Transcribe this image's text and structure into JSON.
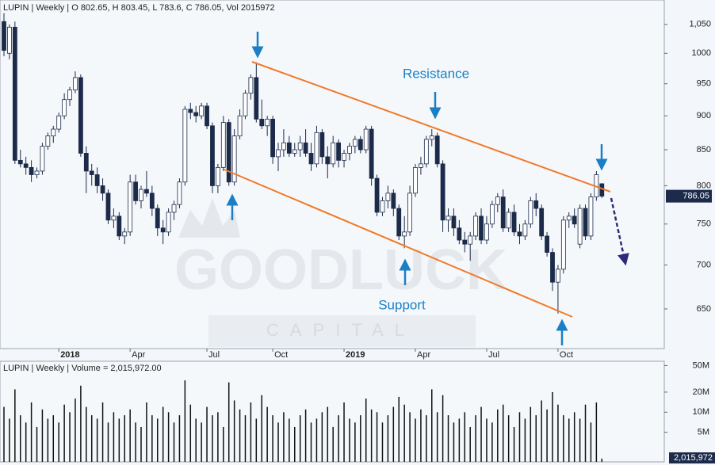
{
  "chart_data": [
    {
      "type": "candlestick",
      "title": "LUPIN | Weekly | O 802.65, H 803.45, L 783.6, C 786.05, Vol 2015972",
      "categories": [
        null,
        null,
        null,
        null,
        null,
        null,
        null,
        null,
        null,
        null,
        "2018",
        null,
        null,
        null,
        null,
        null,
        null,
        null,
        null,
        null,
        null,
        null,
        null,
        "Apr",
        null,
        null,
        null,
        null,
        null,
        null,
        null,
        null,
        null,
        null,
        null,
        null,
        null,
        "Jul",
        null,
        null,
        null,
        null,
        null,
        null,
        null,
        null,
        null,
        null,
        null,
        "Oct",
        null,
        null,
        null,
        null,
        null,
        null,
        null,
        null,
        null,
        null,
        null,
        null,
        "2019",
        null,
        null,
        null,
        null,
        null,
        null,
        null,
        null,
        null,
        null,
        null,
        null,
        "Apr",
        null,
        null,
        null,
        null,
        null,
        null,
        null,
        null,
        null,
        null,
        null,
        null,
        "Jul",
        null,
        null,
        null,
        null,
        null,
        null,
        null,
        null,
        null,
        null,
        null,
        null,
        "Oct",
        null,
        null,
        null,
        null,
        null,
        null,
        null,
        null
      ],
      "ohlc": [
        [
          1055,
          1070,
          995,
          1005
        ],
        [
          1000,
          1050,
          990,
          1045
        ],
        [
          1045,
          1055,
          830,
          835
        ],
        [
          835,
          850,
          825,
          830
        ],
        [
          830,
          840,
          815,
          825
        ],
        [
          825,
          835,
          805,
          815
        ],
        [
          815,
          825,
          810,
          820
        ],
        [
          820,
          860,
          815,
          855
        ],
        [
          855,
          875,
          850,
          870
        ],
        [
          870,
          885,
          860,
          880
        ],
        [
          880,
          905,
          875,
          900
        ],
        [
          900,
          935,
          895,
          925
        ],
        [
          925,
          945,
          915,
          940
        ],
        [
          940,
          970,
          935,
          960
        ],
        [
          960,
          965,
          840,
          845
        ],
        [
          845,
          855,
          790,
          820
        ],
        [
          820,
          830,
          800,
          815
        ],
        [
          815,
          825,
          790,
          800
        ],
        [
          800,
          810,
          780,
          790
        ],
        [
          790,
          795,
          750,
          755
        ],
        [
          755,
          770,
          745,
          760
        ],
        [
          760,
          765,
          730,
          735
        ],
        [
          735,
          745,
          725,
          740
        ],
        [
          740,
          815,
          735,
          805
        ],
        [
          805,
          815,
          775,
          780
        ],
        [
          780,
          800,
          770,
          795
        ],
        [
          795,
          820,
          785,
          790
        ],
        [
          790,
          800,
          760,
          770
        ],
        [
          770,
          775,
          735,
          745
        ],
        [
          745,
          755,
          725,
          740
        ],
        [
          740,
          770,
          735,
          765
        ],
        [
          765,
          780,
          755,
          775
        ],
        [
          775,
          810,
          770,
          805
        ],
        [
          805,
          915,
          800,
          910
        ],
        [
          910,
          920,
          895,
          905
        ],
        [
          905,
          915,
          890,
          900
        ],
        [
          900,
          920,
          895,
          915
        ],
        [
          915,
          920,
          880,
          885
        ],
        [
          885,
          890,
          790,
          800
        ],
        [
          800,
          830,
          790,
          825
        ],
        [
          825,
          900,
          820,
          890
        ],
        [
          890,
          895,
          800,
          805
        ],
        [
          805,
          880,
          800,
          870
        ],
        [
          870,
          910,
          865,
          900
        ],
        [
          900,
          940,
          895,
          935
        ],
        [
          935,
          965,
          925,
          960
        ],
        [
          960,
          985,
          890,
          895
        ],
        [
          895,
          925,
          880,
          885
        ],
        [
          885,
          900,
          870,
          895
        ],
        [
          895,
          900,
          830,
          840
        ],
        [
          840,
          860,
          820,
          850
        ],
        [
          850,
          880,
          840,
          860
        ],
        [
          860,
          870,
          840,
          845
        ],
        [
          845,
          860,
          840,
          850
        ],
        [
          850,
          870,
          840,
          860
        ],
        [
          860,
          880,
          840,
          845
        ],
        [
          845,
          860,
          820,
          830
        ],
        [
          830,
          885,
          825,
          875
        ],
        [
          875,
          880,
          830,
          840
        ],
        [
          840,
          855,
          810,
          830
        ],
        [
          830,
          870,
          825,
          860
        ],
        [
          860,
          865,
          825,
          835
        ],
        [
          835,
          850,
          825,
          845
        ],
        [
          845,
          860,
          835,
          855
        ],
        [
          855,
          870,
          845,
          865
        ],
        [
          865,
          870,
          845,
          850
        ],
        [
          850,
          885,
          845,
          880
        ],
        [
          880,
          885,
          800,
          810
        ],
        [
          810,
          815,
          760,
          765
        ],
        [
          765,
          785,
          760,
          780
        ],
        [
          780,
          800,
          770,
          790
        ],
        [
          790,
          795,
          760,
          770
        ],
        [
          770,
          775,
          730,
          735
        ],
        [
          735,
          760,
          720,
          740
        ],
        [
          740,
          800,
          735,
          790
        ],
        [
          790,
          830,
          785,
          825
        ],
        [
          825,
          840,
          815,
          830
        ],
        [
          830,
          870,
          825,
          865
        ],
        [
          865,
          880,
          855,
          870
        ],
        [
          870,
          875,
          825,
          830
        ],
        [
          830,
          835,
          740,
          755
        ],
        [
          755,
          770,
          740,
          760
        ],
        [
          760,
          770,
          735,
          745
        ],
        [
          745,
          755,
          725,
          730
        ],
        [
          730,
          740,
          715,
          725
        ],
        [
          725,
          740,
          705,
          735
        ],
        [
          735,
          765,
          730,
          760
        ],
        [
          760,
          770,
          725,
          730
        ],
        [
          730,
          760,
          725,
          750
        ],
        [
          750,
          780,
          745,
          775
        ],
        [
          775,
          790,
          765,
          785
        ],
        [
          785,
          795,
          740,
          745
        ],
        [
          745,
          770,
          740,
          765
        ],
        [
          765,
          775,
          735,
          740
        ],
        [
          740,
          750,
          725,
          735
        ],
        [
          735,
          755,
          730,
          750
        ],
        [
          750,
          785,
          745,
          780
        ],
        [
          780,
          790,
          760,
          770
        ],
        [
          770,
          775,
          730,
          735
        ],
        [
          735,
          740,
          710,
          715
        ],
        [
          715,
          720,
          670,
          680
        ],
        [
          680,
          700,
          645,
          695
        ],
        [
          695,
          760,
          690,
          755
        ],
        [
          755,
          765,
          745,
          760
        ],
        [
          760,
          770,
          745,
          750
        ],
        [
          725,
          775,
          720,
          770
        ],
        [
          770,
          775,
          730,
          735
        ],
        [
          735,
          790,
          730,
          785
        ],
        [
          785,
          820,
          780,
          815
        ],
        [
          802.65,
          803.45,
          783.6,
          786.05
        ]
      ],
      "up_color": "#ffffff",
      "down_color": "#1c2b4a",
      "outline": "#1c2b4a",
      "log": true,
      "ylim": [
        608,
        1094
      ],
      "yticks": [
        650,
        700,
        750,
        800,
        850,
        900,
        950,
        1000,
        {
          "value": 1050,
          "label": "1,050"
        }
      ],
      "annotations": [
        "Resistance",
        "Support"
      ],
      "watermark": [
        "GOODLUCK",
        "CAPITAL"
      ]
    },
    {
      "type": "bar",
      "title": "LUPIN | Weekly | Volume = 2,015,972.00",
      "values": [
        12000000,
        8000000,
        22000000,
        9000000,
        7000000,
        14000000,
        6000000,
        11000000,
        8000000,
        9000000,
        7000000,
        13000000,
        10000000,
        16000000,
        25000000,
        12000000,
        9000000,
        8000000,
        14000000,
        7000000,
        10000000,
        8000000,
        9000000,
        11000000,
        7000000,
        6000000,
        14000000,
        9000000,
        8000000,
        12000000,
        10000000,
        7000000,
        9000000,
        30000000,
        13000000,
        8000000,
        7000000,
        12000000,
        9000000,
        10000000,
        6000000,
        28000000,
        15000000,
        11000000,
        9000000,
        14000000,
        8000000,
        18000000,
        12000000,
        9000000,
        7000000,
        10000000,
        8000000,
        6000000,
        9000000,
        11000000,
        7000000,
        8000000,
        10000000,
        12000000,
        6000000,
        9000000,
        14000000,
        8000000,
        7000000,
        9000000,
        16000000,
        11000000,
        10000000,
        7000000,
        9000000,
        12000000,
        17000000,
        13000000,
        10000000,
        8000000,
        11000000,
        9000000,
        22000000,
        10000000,
        18000000,
        9000000,
        7000000,
        8000000,
        10000000,
        6000000,
        9000000,
        12000000,
        8000000,
        7000000,
        11000000,
        13000000,
        9000000,
        6000000,
        10000000,
        8000000,
        12000000,
        9000000,
        15000000,
        11000000,
        20000000,
        13000000,
        9000000,
        8000000,
        10000000,
        8000000,
        13000000,
        7000000,
        14000000,
        2015972
      ],
      "last_value_label": "2,015,972",
      "color": "#111111",
      "log": true,
      "ylim": [
        1800000,
        58000000
      ],
      "yticks": [
        {
          "value": 5000000,
          "label": "5M"
        },
        {
          "value": 10000000,
          "label": "10M"
        },
        {
          "value": 20000000,
          "label": "20M"
        },
        {
          "value": 50000000,
          "label": "50M"
        }
      ]
    }
  ]
}
